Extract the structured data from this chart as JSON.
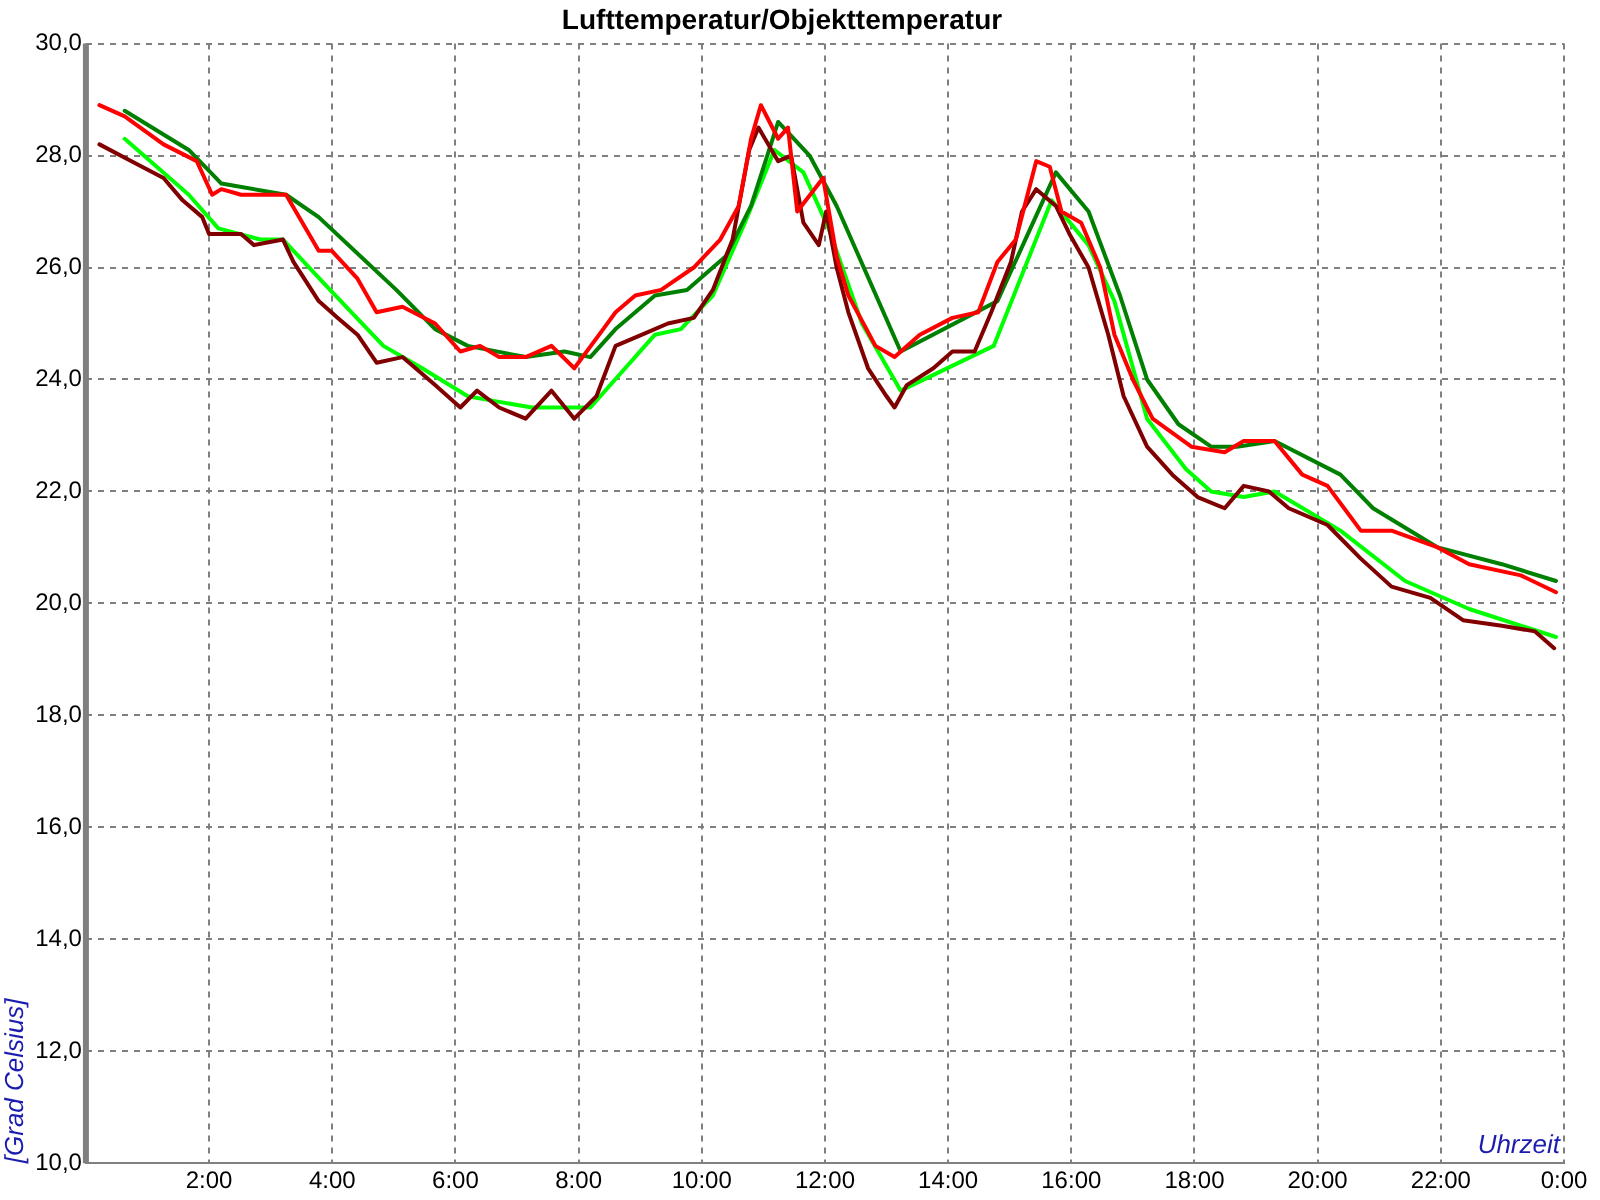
{
  "chart_data": {
    "type": "line",
    "title": "Lufttemperatur/Objekttemperatur",
    "xlabel": "Uhrzeit",
    "ylabel": "[Grad Celsius]",
    "xlim": [
      0,
      24
    ],
    "xticks": [
      {
        "value": 0,
        "label": null
      },
      {
        "value": 2,
        "label": "2:00"
      },
      {
        "value": 4,
        "label": "4:00"
      },
      {
        "value": 6,
        "label": "6:00"
      },
      {
        "value": 8,
        "label": "8:00"
      },
      {
        "value": 10,
        "label": "10:00"
      },
      {
        "value": 12,
        "label": "12:00"
      },
      {
        "value": 14,
        "label": "14:00"
      },
      {
        "value": 16,
        "label": "16:00"
      },
      {
        "value": 18,
        "label": "18:00"
      },
      {
        "value": 20,
        "label": "20:00"
      },
      {
        "value": 22,
        "label": "22:00"
      },
      {
        "value": 24,
        "label": "0:00"
      }
    ],
    "ylim": [
      10,
      30
    ],
    "yticks": [
      {
        "value": 10,
        "label": "10,0"
      },
      {
        "value": 12,
        "label": "12,0"
      },
      {
        "value": 14,
        "label": "14,0"
      },
      {
        "value": 16,
        "label": "16,0"
      },
      {
        "value": 18,
        "label": "18,0"
      },
      {
        "value": 20,
        "label": "20,0"
      },
      {
        "value": 22,
        "label": "22,0"
      },
      {
        "value": 24,
        "label": "24,0"
      },
      {
        "value": 26,
        "label": "26,0"
      },
      {
        "value": 28,
        "label": "28,0"
      },
      {
        "value": 30,
        "label": "30,0"
      }
    ],
    "grid": true,
    "legend": false,
    "marker": "none",
    "line_style": "solid",
    "series": [
      {
        "color": "#ff0000",
        "x": [
          0.22,
          0.63,
          1.26,
          1.8,
          2.05,
          2.2,
          2.52,
          3.25,
          3.78,
          3.99,
          4.41,
          4.72,
          5.14,
          5.67,
          6.08,
          6.4,
          6.71,
          7.14,
          7.56,
          7.93,
          8.4,
          8.6,
          8.92,
          9.34,
          9.87,
          10.3,
          10.6,
          10.8,
          10.96,
          11.24,
          11.4,
          11.55,
          11.97,
          12.19,
          12.38,
          12.82,
          13.13,
          13.54,
          14.07,
          14.49,
          14.8,
          15.1,
          15.43,
          15.65,
          15.84,
          16.16,
          16.47,
          16.7,
          17.0,
          17.32,
          17.95,
          18.49,
          18.8,
          19.3,
          19.75,
          20.16,
          20.7,
          21.2,
          21.95,
          22.46,
          23.3,
          23.87
        ],
        "values": [
          28.9,
          28.7,
          28.2,
          27.9,
          27.3,
          27.4,
          27.3,
          27.3,
          26.3,
          26.3,
          25.8,
          25.2,
          25.3,
          25.0,
          24.5,
          24.6,
          24.4,
          24.4,
          24.6,
          24.2,
          24.9,
          25.2,
          25.5,
          25.6,
          26.0,
          26.5,
          27.1,
          28.3,
          28.9,
          28.3,
          28.5,
          27.0,
          27.6,
          26.2,
          25.5,
          24.6,
          24.4,
          24.8,
          25.1,
          25.2,
          26.1,
          26.5,
          27.9,
          27.8,
          27.0,
          26.8,
          26.0,
          24.8,
          24.0,
          23.3,
          22.8,
          22.7,
          22.9,
          22.9,
          22.3,
          22.1,
          21.3,
          21.3,
          21.0,
          20.7,
          20.5,
          20.2
        ]
      },
      {
        "color": "#800000",
        "x": [
          0.22,
          0.74,
          1.26,
          1.57,
          1.89,
          2.0,
          2.52,
          2.73,
          3.2,
          3.37,
          3.78,
          4.09,
          4.41,
          4.72,
          5.14,
          5.67,
          6.08,
          6.35,
          6.71,
          7.14,
          7.56,
          7.93,
          8.29,
          8.6,
          9.03,
          9.45,
          9.87,
          10.18,
          10.5,
          10.77,
          10.92,
          11.24,
          11.45,
          11.65,
          11.9,
          12.02,
          12.19,
          12.38,
          12.7,
          13.0,
          13.13,
          13.33,
          13.76,
          14.07,
          14.43,
          14.7,
          15.02,
          15.2,
          15.43,
          15.75,
          15.97,
          16.28,
          16.6,
          16.85,
          17.23,
          17.64,
          18.05,
          18.49,
          18.8,
          19.21,
          19.53,
          20.16,
          20.7,
          21.2,
          21.83,
          22.36,
          22.99,
          23.53,
          23.84
        ],
        "values": [
          28.2,
          27.9,
          27.6,
          27.2,
          26.9,
          26.6,
          26.6,
          26.4,
          26.5,
          26.1,
          25.4,
          25.1,
          24.8,
          24.3,
          24.4,
          23.9,
          23.5,
          23.8,
          23.5,
          23.3,
          23.8,
          23.3,
          23.7,
          24.6,
          24.8,
          25.0,
          25.1,
          25.6,
          26.5,
          28.1,
          28.5,
          27.9,
          28.0,
          26.8,
          26.4,
          27.0,
          26.0,
          25.2,
          24.2,
          23.7,
          23.5,
          23.9,
          24.2,
          24.5,
          24.5,
          25.2,
          26.1,
          27.0,
          27.4,
          27.1,
          26.6,
          26.0,
          24.8,
          23.7,
          22.8,
          22.3,
          21.9,
          21.7,
          22.1,
          22.0,
          21.7,
          21.4,
          20.8,
          20.3,
          20.1,
          19.7,
          19.6,
          19.5,
          19.2
        ]
      },
      {
        "color": "#008000",
        "x": [
          0.63,
          1.67,
          2.2,
          3.25,
          3.78,
          5.04,
          5.67,
          6.2,
          7.14,
          7.77,
          8.19,
          8.6,
          9.24,
          9.76,
          10.39,
          10.8,
          11.24,
          11.75,
          12.19,
          13.23,
          14.8,
          15.75,
          16.28,
          16.79,
          17.23,
          17.74,
          18.27,
          18.69,
          19.3,
          20.37,
          20.9,
          21.95,
          22.99,
          23.87
        ],
        "values": [
          28.8,
          28.1,
          27.5,
          27.3,
          26.9,
          25.6,
          24.9,
          24.6,
          24.4,
          24.5,
          24.4,
          24.9,
          25.5,
          25.6,
          26.2,
          27.1,
          28.6,
          28.0,
          27.1,
          24.5,
          25.4,
          27.7,
          27.0,
          25.5,
          24.0,
          23.2,
          22.8,
          22.8,
          22.9,
          22.3,
          21.7,
          21.0,
          20.7,
          20.4
        ]
      },
      {
        "color": "#00ff00",
        "x": [
          0.63,
          1.67,
          2.15,
          2.83,
          3.2,
          3.88,
          4.83,
          5.46,
          6.2,
          6.71,
          7.24,
          8.19,
          9.24,
          9.66,
          10.18,
          10.7,
          11.18,
          11.65,
          12.06,
          12.6,
          13.23,
          14.74,
          15.68,
          16.28,
          16.7,
          17.23,
          17.86,
          18.27,
          18.8,
          19.3,
          20.37,
          21.42,
          22.46,
          23.87
        ],
        "values": [
          28.3,
          27.3,
          26.7,
          26.5,
          26.5,
          25.7,
          24.6,
          24.2,
          23.7,
          23.6,
          23.5,
          23.5,
          24.8,
          24.9,
          25.5,
          26.8,
          28.1,
          27.7,
          26.7,
          25.0,
          23.8,
          24.6,
          27.2,
          26.4,
          25.4,
          23.3,
          22.4,
          22.0,
          21.9,
          22.0,
          21.3,
          20.4,
          19.9,
          19.4
        ]
      }
    ]
  }
}
